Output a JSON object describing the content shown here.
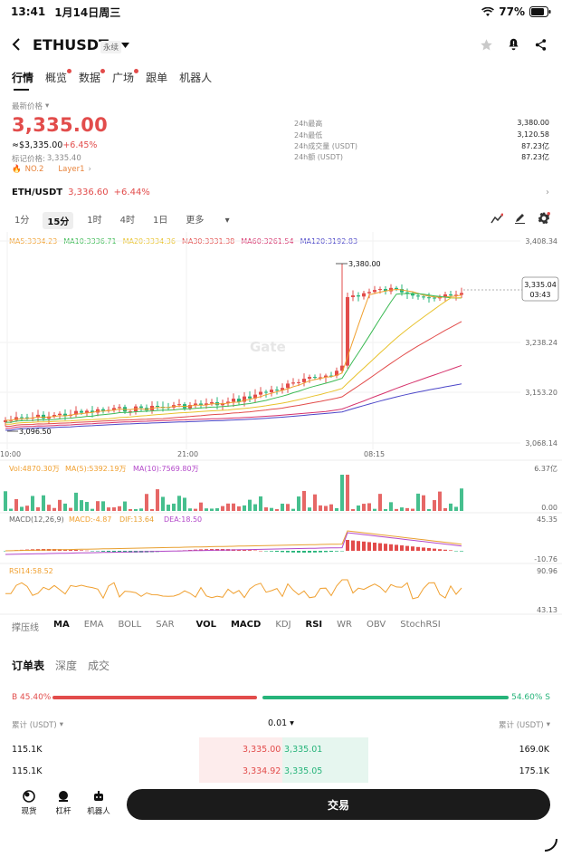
{
  "status": {
    "time": "13:41",
    "date": "1月14日周三",
    "battery": "77%"
  },
  "header": {
    "symbol": "ETHUSDT",
    "contract": "永续"
  },
  "tabs": [
    {
      "label": "行情",
      "dot": false
    },
    {
      "label": "概览",
      "dot": true
    },
    {
      "label": "数据",
      "dot": true
    },
    {
      "label": "广场",
      "dot": true
    },
    {
      "label": "跟单",
      "dot": false
    },
    {
      "label": "机器人",
      "dot": false
    }
  ],
  "price": {
    "latest_label": "最新价格",
    "last": "3,335.00",
    "usd": "≈$3,335.00",
    "change": "+6.45%",
    "mark_label": "标记价格:",
    "mark": "3,335.40",
    "rank": "NO.2",
    "tag": "Layer1"
  },
  "stats": [
    {
      "label": "24h最高",
      "value": "3,380.00"
    },
    {
      "label": "24h最低",
      "value": "3,120.58"
    },
    {
      "label": "24h成交量 (USDT)",
      "value": "87.23亿"
    },
    {
      "label": "24h额 (USDT)",
      "value": "87.23亿"
    }
  ],
  "spot": {
    "pair": "ETH/USDT",
    "price": "3,336.60",
    "change": "+6.44%"
  },
  "timeframes": {
    "items": [
      "1分",
      "15分",
      "1时",
      "4时",
      "1日",
      "更多"
    ],
    "selected": 1
  },
  "ma_legend": [
    {
      "label": "MA5:3334.23",
      "color": "#f0a030"
    },
    {
      "label": "MA10:3336.71",
      "color": "#3cba54"
    },
    {
      "label": "MA20:3334.36",
      "color": "#e8c22c"
    },
    {
      "label": "MA30:3331.38",
      "color": "#e24c4b"
    },
    {
      "label": "MA60:3261.54",
      "color": "#d6336c"
    },
    {
      "label": "MA120:3192.83",
      "color": "#4b46c8"
    }
  ],
  "axis": {
    "price_ticks": [
      "3,408.34",
      "3,238.24",
      "3,153.20",
      "3,068.14"
    ],
    "time_ticks": [
      "10:00",
      "21:00",
      "08:15"
    ],
    "high_label": "3,380.00",
    "low_label": "3,096.50",
    "current_price": "3,335.04",
    "countdown": "03:43",
    "watermark": "Gate"
  },
  "volume": {
    "legend": [
      {
        "label": "Vol:4870.30万",
        "color": "#f0a030"
      },
      {
        "label": "MA(5):5392.19万",
        "color": "#f0a030"
      },
      {
        "label": "MA(10):7569.80万",
        "color": "#b348c9"
      }
    ],
    "top": "6.37亿",
    "bottom": "0.00"
  },
  "macd": {
    "legend": [
      {
        "label": "MACD(12,26,9)",
        "color": "#666"
      },
      {
        "label": "MACD:-4.87",
        "color": "#f0a030"
      },
      {
        "label": "DIF:13.64",
        "color": "#e8a030"
      },
      {
        "label": "DEA:18.50",
        "color": "#b348c9"
      }
    ],
    "top": "45.35",
    "bottom": "-10.76"
  },
  "rsi": {
    "legend": "RSI14:58.52",
    "top": "90.96",
    "bottom": "43.13"
  },
  "indicators": {
    "items": [
      "撑压线",
      "MA",
      "EMA",
      "BOLL",
      "SAR",
      "VOL",
      "MACD",
      "KDJ",
      "RSI",
      "WR",
      "OBV",
      "StochRSI"
    ],
    "on": [
      1,
      5,
      6,
      8
    ]
  },
  "orderbook": {
    "tabs": [
      "订单表",
      "深度",
      "成交"
    ],
    "buy_pct": "B 45.40%",
    "sell_pct": "54.60% S",
    "left_header": "累计 (USDT)",
    "precision": "0.01",
    "right_header": "累计 (USDT)",
    "rows": [
      {
        "bid_total": "115.1K",
        "bid": "3,335.00",
        "ask": "3,335.01",
        "ask_total": "169.0K"
      },
      {
        "bid_total": "115.1K",
        "bid": "3,334.92",
        "ask": "3,335.05",
        "ask_total": "175.1K"
      }
    ]
  },
  "bottom": {
    "items": [
      "现货",
      "杠杆",
      "机器人"
    ],
    "trade": "交易"
  },
  "colors": {
    "up": "#e24c4b",
    "down": "#26b47a"
  }
}
